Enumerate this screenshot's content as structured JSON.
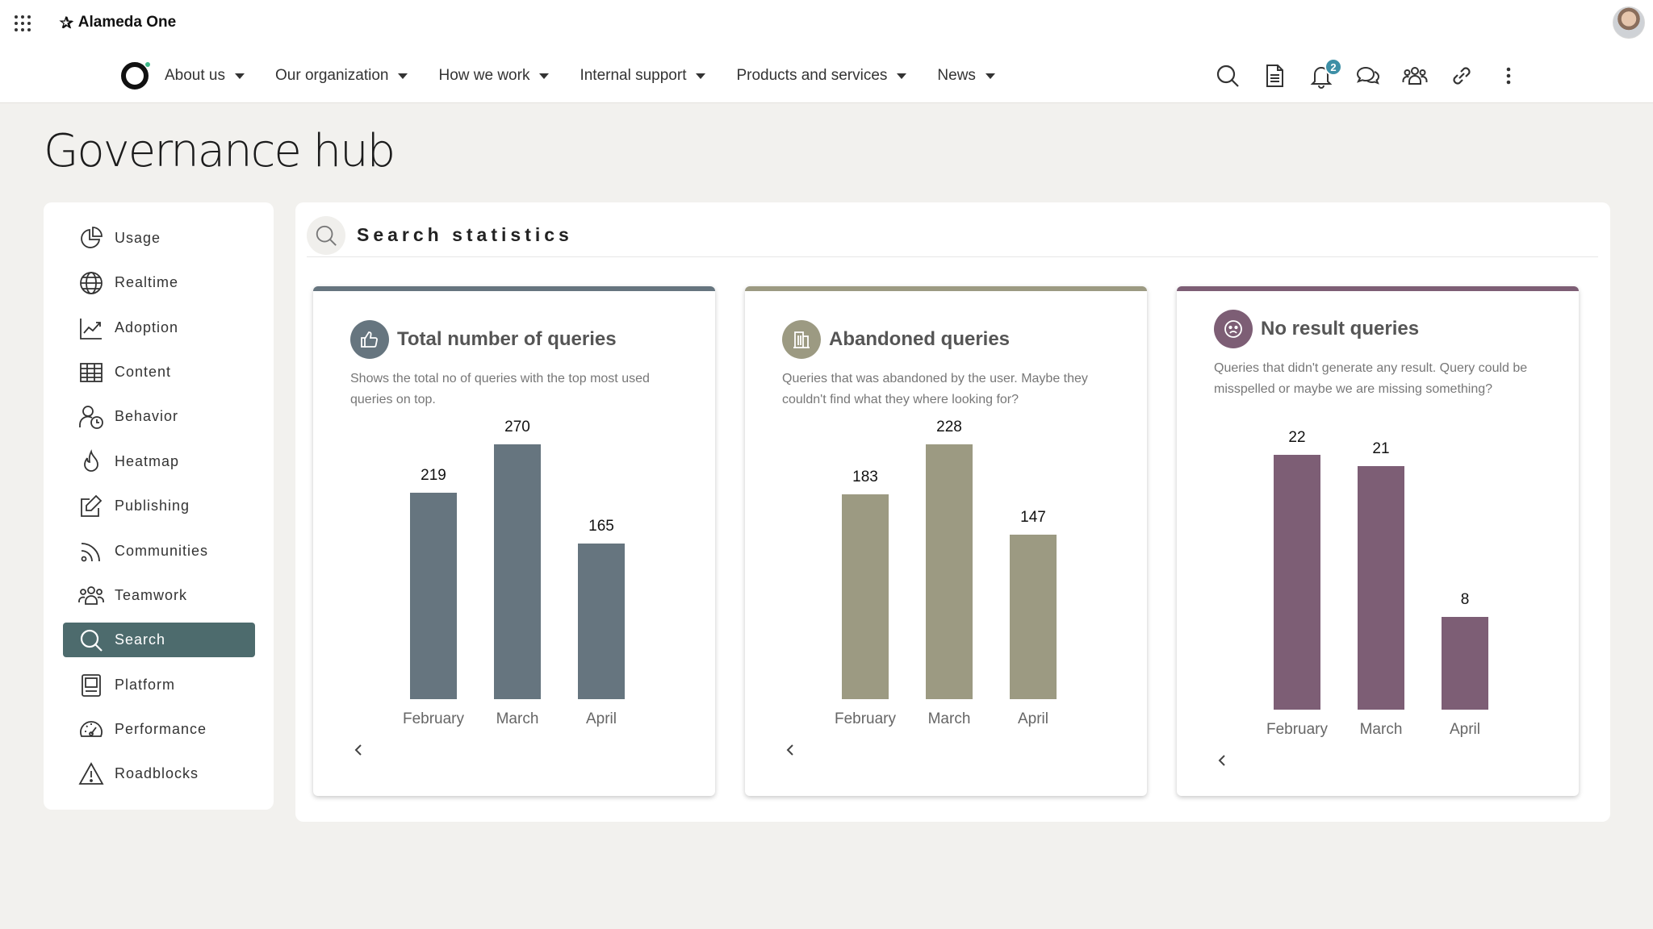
{
  "app": {
    "brand": "Alameda One",
    "brand_icon": "star-burst-icon"
  },
  "nav": {
    "items": [
      {
        "label": "About us"
      },
      {
        "label": "Our organization"
      },
      {
        "label": "How we work"
      },
      {
        "label": "Internal support"
      },
      {
        "label": "Products and services"
      },
      {
        "label": "News"
      }
    ],
    "tools": [
      "search-icon",
      "document-icon",
      "bell-icon",
      "chat-icon",
      "people-icon",
      "link-icon",
      "more-vertical-icon"
    ],
    "notification_count": "2"
  },
  "page": {
    "title": "Governance hub"
  },
  "sidebar": {
    "items": [
      {
        "label": "Usage",
        "icon": "pie-chart-icon"
      },
      {
        "label": "Realtime",
        "icon": "globe-icon"
      },
      {
        "label": "Adoption",
        "icon": "line-chart-icon"
      },
      {
        "label": "Content",
        "icon": "table-icon"
      },
      {
        "label": "Behavior",
        "icon": "user-clock-icon"
      },
      {
        "label": "Heatmap",
        "icon": "flame-icon"
      },
      {
        "label": "Publishing",
        "icon": "edit-icon"
      },
      {
        "label": "Communities",
        "icon": "rss-icon"
      },
      {
        "label": "Teamwork",
        "icon": "team-icon"
      },
      {
        "label": "Search",
        "icon": "search-icon",
        "active": true
      },
      {
        "label": "Platform",
        "icon": "platform-icon"
      },
      {
        "label": "Performance",
        "icon": "gauge-icon"
      },
      {
        "label": "Roadblocks",
        "icon": "warning-icon"
      }
    ],
    "active_color": "#4d6b6d"
  },
  "main": {
    "title": "Search statistics"
  },
  "cards": [
    {
      "title": "Total number of queries",
      "icon": "thumbs-up-icon",
      "description": "Shows the total no of queries with the top most used queries on top.",
      "color": "#66757f"
    },
    {
      "title": "Abandoned queries",
      "icon": "building-icon",
      "description": "Queries that was abandoned by the user. Maybe they couldn't find what they where looking for?",
      "color": "#9c9a82"
    },
    {
      "title": "No result queries",
      "icon": "sad-face-icon",
      "description": "Queries that didn't generate any result. Query could be misspelled or maybe we are missing something?",
      "color": "#7d5e75"
    }
  ],
  "chart_data": [
    {
      "type": "bar",
      "categories": [
        "February",
        "March",
        "April"
      ],
      "values": [
        219,
        270,
        165
      ],
      "ylim": [
        0,
        270
      ]
    },
    {
      "type": "bar",
      "categories": [
        "February",
        "March",
        "April"
      ],
      "values": [
        183,
        228,
        147
      ],
      "ylim": [
        0,
        228
      ]
    },
    {
      "type": "bar",
      "categories": [
        "February",
        "March",
        "April"
      ],
      "values": [
        22,
        21,
        8
      ],
      "ylim": [
        0,
        22
      ]
    }
  ]
}
